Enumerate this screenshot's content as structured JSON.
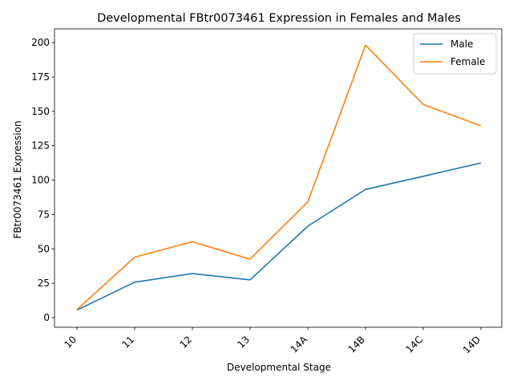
{
  "chart_data": {
    "type": "line",
    "title": "Developmental FBtr0073461 Expression in Females and Males",
    "xlabel": "Developmental Stage",
    "ylabel": "FBtr0073461 Expression",
    "categories": [
      "10",
      "11",
      "12",
      "13",
      "14A",
      "14B",
      "14C",
      "14D"
    ],
    "ylim": [
      -7,
      210
    ],
    "yticks": [
      0,
      25,
      50,
      75,
      100,
      125,
      150,
      175,
      200
    ],
    "grid": false,
    "legend_position": "top-right",
    "series": [
      {
        "name": "Male",
        "color": "#1f77b4",
        "values": [
          5.5,
          25.8,
          32.0,
          27.5,
          66.5,
          93.2,
          102.8,
          112.5
        ]
      },
      {
        "name": "Female",
        "color": "#ff7f0e",
        "values": [
          5.8,
          44.0,
          55.2,
          42.5,
          84.2,
          198.2,
          155.0,
          139.5
        ]
      }
    ]
  }
}
